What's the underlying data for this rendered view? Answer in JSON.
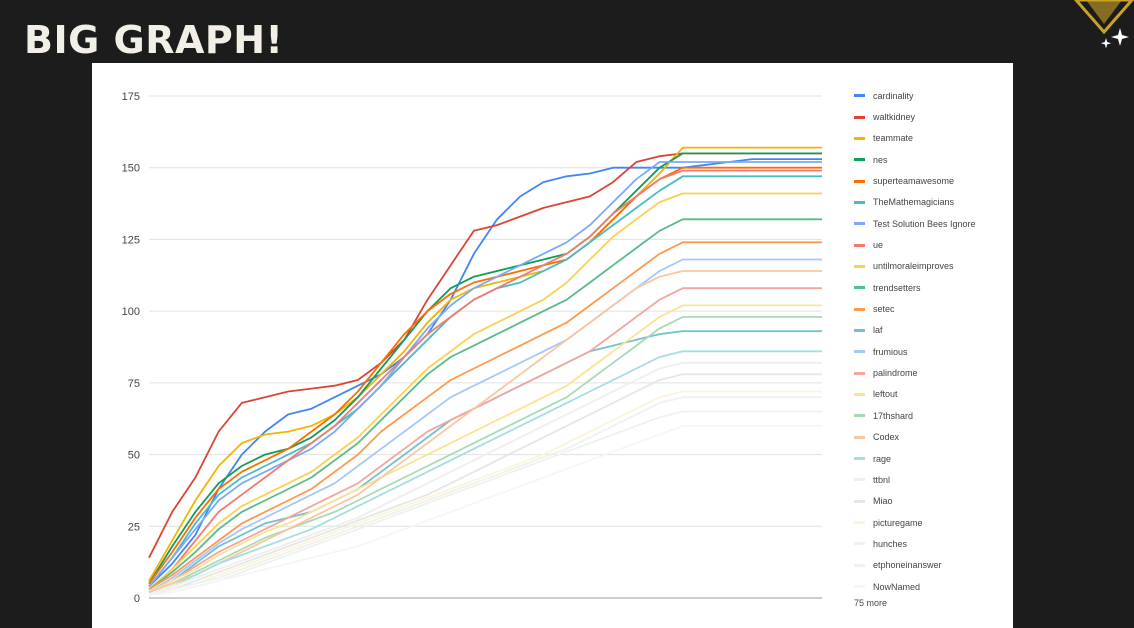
{
  "slide": {
    "title": "BIG GRAPH!"
  },
  "colors": {
    "background": "#1c1c1c",
    "title": "#f2efe6",
    "logo": "#c9a227"
  },
  "chart_data": {
    "type": "line",
    "title": "",
    "xlabel": "",
    "ylabel": "",
    "ylim": [
      0,
      175
    ],
    "yticks": [
      "175",
      "150",
      "125",
      "100",
      "75",
      "50",
      "25",
      "0"
    ],
    "grid": true,
    "legend_position": "right",
    "x_points": 30,
    "legend_more": "75 more",
    "series": [
      {
        "name": "cardinality",
        "color": "#4285f4",
        "values": [
          4,
          12,
          22,
          38,
          50,
          58,
          64,
          66,
          70,
          74,
          78,
          84,
          92,
          104,
          120,
          132,
          140,
          145,
          147,
          148,
          150,
          150,
          150,
          150,
          151,
          152,
          153,
          153,
          153,
          153
        ]
      },
      {
        "name": "waltkidney",
        "color": "#db4437",
        "values": [
          14,
          30,
          42,
          58,
          68,
          70,
          72,
          73,
          74,
          76,
          82,
          90,
          104,
          116,
          128,
          130,
          133,
          136,
          138,
          140,
          145,
          152,
          154,
          155,
          155,
          155,
          155,
          155,
          155,
          155
        ]
      },
      {
        "name": "teammate",
        "color": "#f4b400",
        "values": [
          6,
          20,
          34,
          46,
          54,
          57,
          58,
          60,
          64,
          70,
          78,
          86,
          96,
          104,
          108,
          110,
          112,
          114,
          118,
          124,
          132,
          140,
          148,
          157,
          157,
          157,
          157,
          157,
          157,
          157
        ]
      },
      {
        "name": "nes",
        "color": "#0f9d58",
        "values": [
          5,
          18,
          30,
          40,
          46,
          50,
          52,
          56,
          62,
          70,
          80,
          90,
          100,
          108,
          112,
          114,
          116,
          118,
          120,
          126,
          134,
          142,
          150,
          155,
          155,
          155,
          155,
          155,
          155,
          155
        ]
      },
      {
        "name": "superteamawesome",
        "color": "#ff6d00",
        "values": [
          5,
          16,
          28,
          38,
          44,
          48,
          52,
          58,
          64,
          72,
          82,
          92,
          100,
          106,
          110,
          112,
          114,
          116,
          118,
          124,
          132,
          140,
          146,
          150,
          150,
          150,
          150,
          150,
          150,
          150
        ]
      },
      {
        "name": "TheMathemagicians",
        "color": "#46bdc6",
        "values": [
          4,
          14,
          26,
          36,
          42,
          46,
          50,
          54,
          60,
          66,
          74,
          82,
          90,
          98,
          104,
          108,
          110,
          114,
          118,
          124,
          130,
          136,
          142,
          147,
          147,
          147,
          147,
          147,
          147,
          147
        ]
      },
      {
        "name": "Test Solution Bees Ignore",
        "color": "#7baaf7",
        "values": [
          4,
          14,
          24,
          34,
          40,
          44,
          48,
          52,
          58,
          66,
          74,
          84,
          94,
          102,
          108,
          112,
          116,
          120,
          124,
          130,
          138,
          146,
          152,
          152,
          152,
          152,
          152,
          152,
          152,
          152
        ]
      },
      {
        "name": "ue",
        "color": "#f07b72",
        "values": [
          3,
          10,
          20,
          30,
          36,
          42,
          48,
          54,
          60,
          68,
          76,
          84,
          92,
          98,
          104,
          108,
          112,
          116,
          120,
          126,
          134,
          140,
          146,
          149,
          149,
          149,
          149,
          149,
          149,
          149
        ]
      },
      {
        "name": "untilmoraleimproves",
        "color": "#fcd04f",
        "values": [
          3,
          10,
          18,
          26,
          32,
          36,
          40,
          44,
          50,
          56,
          64,
          72,
          80,
          86,
          92,
          96,
          100,
          104,
          110,
          118,
          126,
          132,
          138,
          141,
          141,
          141,
          141,
          141,
          141,
          141
        ]
      },
      {
        "name": "trendsetters",
        "color": "#57bb8a",
        "values": [
          3,
          9,
          16,
          24,
          30,
          34,
          38,
          42,
          48,
          54,
          62,
          70,
          78,
          84,
          88,
          92,
          96,
          100,
          104,
          110,
          116,
          122,
          128,
          132,
          132,
          132,
          132,
          132,
          132,
          132
        ]
      },
      {
        "name": "setec",
        "color": "#ff994d",
        "values": [
          3,
          8,
          14,
          20,
          26,
          30,
          34,
          38,
          44,
          50,
          58,
          64,
          70,
          76,
          80,
          84,
          88,
          92,
          96,
          102,
          108,
          114,
          120,
          124,
          124,
          124,
          124,
          124,
          124,
          124
        ]
      },
      {
        "name": "laf",
        "color": "#71c2cc",
        "values": [
          2,
          6,
          12,
          18,
          22,
          26,
          28,
          30,
          34,
          38,
          44,
          50,
          56,
          62,
          66,
          70,
          74,
          78,
          82,
          86,
          88,
          90,
          92,
          93,
          93,
          93,
          93,
          93,
          93,
          93
        ]
      },
      {
        "name": "frumious",
        "color": "#a7c7f9",
        "values": [
          2,
          7,
          13,
          19,
          24,
          28,
          32,
          36,
          40,
          46,
          52,
          58,
          64,
          70,
          74,
          78,
          82,
          86,
          90,
          96,
          102,
          108,
          114,
          118,
          118,
          118,
          118,
          118,
          118,
          118
        ]
      },
      {
        "name": "palindrome",
        "color": "#f2a6a0",
        "values": [
          2,
          6,
          11,
          16,
          20,
          24,
          28,
          32,
          36,
          40,
          46,
          52,
          58,
          62,
          66,
          70,
          74,
          78,
          82,
          86,
          92,
          98,
          104,
          108,
          108,
          108,
          108,
          108,
          108,
          108
        ]
      },
      {
        "name": "leftout",
        "color": "#fde293",
        "values": [
          2,
          6,
          10,
          15,
          19,
          23,
          26,
          30,
          34,
          38,
          42,
          46,
          50,
          54,
          58,
          62,
          66,
          70,
          74,
          80,
          86,
          92,
          98,
          102,
          102,
          102,
          102,
          102,
          102,
          102
        ]
      },
      {
        "name": "17thshard",
        "color": "#a8dab5",
        "values": [
          2,
          5,
          9,
          13,
          17,
          21,
          24,
          27,
          30,
          34,
          38,
          42,
          46,
          50,
          54,
          58,
          62,
          66,
          70,
          76,
          82,
          88,
          94,
          98,
          98,
          98,
          98,
          98,
          98,
          98
        ]
      },
      {
        "name": "Codex",
        "color": "#f9c6a0",
        "values": [
          2,
          5,
          8,
          12,
          16,
          20,
          24,
          28,
          32,
          36,
          42,
          48,
          54,
          60,
          66,
          72,
          78,
          84,
          90,
          96,
          102,
          108,
          112,
          114,
          114,
          114,
          114,
          114,
          114,
          114
        ]
      },
      {
        "name": "rage",
        "color": "#a5dde1",
        "values": [
          1,
          4,
          8,
          12,
          15,
          18,
          21,
          24,
          28,
          32,
          36,
          40,
          44,
          48,
          52,
          56,
          60,
          64,
          68,
          72,
          76,
          80,
          84,
          86,
          86,
          86,
          86,
          86,
          86,
          86
        ]
      },
      {
        "name": "ttbnl",
        "color": "#eeeeee",
        "values": [
          1,
          4,
          7,
          10,
          13,
          16,
          19,
          22,
          25,
          28,
          32,
          36,
          40,
          44,
          48,
          52,
          56,
          60,
          64,
          68,
          72,
          76,
          80,
          82,
          82,
          82,
          82,
          82,
          82,
          82
        ]
      },
      {
        "name": "Miao",
        "color": "#e6e6e6",
        "values": [
          1,
          3,
          6,
          9,
          12,
          15,
          18,
          21,
          24,
          27,
          30,
          33,
          36,
          40,
          44,
          48,
          52,
          56,
          60,
          64,
          68,
          72,
          76,
          78,
          78,
          78,
          78,
          78,
          78,
          78
        ]
      },
      {
        "name": "picturegame",
        "color": "#fbf5d7",
        "values": [
          1,
          3,
          5,
          8,
          11,
          14,
          17,
          20,
          23,
          26,
          29,
          32,
          35,
          38,
          41,
          44,
          47,
          50,
          54,
          58,
          62,
          66,
          70,
          72,
          72,
          72,
          72,
          72,
          72,
          72
        ]
      },
      {
        "name": "hunches",
        "color": "#f0f0f0",
        "values": [
          1,
          3,
          5,
          7,
          10,
          13,
          16,
          19,
          22,
          25,
          28,
          31,
          34,
          37,
          40,
          43,
          46,
          49,
          52,
          56,
          60,
          64,
          68,
          70,
          70,
          70,
          70,
          70,
          70,
          70
        ]
      },
      {
        "name": "etphoneinanswer",
        "color": "#eef3ea",
        "values": [
          1,
          2,
          4,
          6,
          9,
          12,
          15,
          18,
          21,
          24,
          27,
          30,
          33,
          36,
          39,
          42,
          45,
          48,
          51,
          54,
          57,
          60,
          63,
          65,
          65,
          65,
          65,
          65,
          65,
          65
        ]
      },
      {
        "name": "NowNamed",
        "color": "#f5f5f5",
        "values": [
          1,
          2,
          4,
          6,
          8,
          10,
          12,
          14,
          16,
          18,
          21,
          24,
          27,
          30,
          33,
          36,
          39,
          42,
          45,
          48,
          51,
          54,
          57,
          60,
          60,
          60,
          60,
          60,
          60,
          60
        ]
      }
    ]
  }
}
